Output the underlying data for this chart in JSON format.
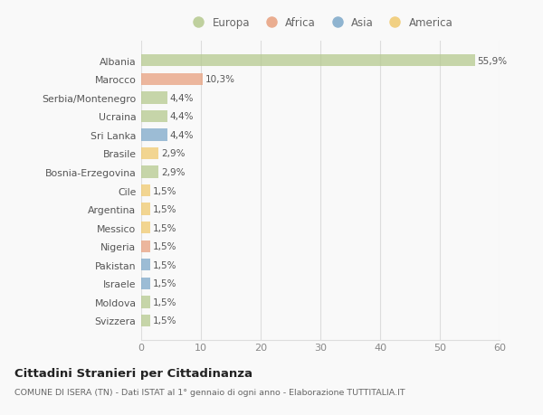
{
  "categories": [
    "Svizzera",
    "Moldova",
    "Israele",
    "Pakistan",
    "Nigeria",
    "Messico",
    "Argentina",
    "Cile",
    "Bosnia-Erzegovina",
    "Brasile",
    "Sri Lanka",
    "Ucraina",
    "Serbia/Montenegro",
    "Marocco",
    "Albania"
  ],
  "values": [
    1.5,
    1.5,
    1.5,
    1.5,
    1.5,
    1.5,
    1.5,
    1.5,
    2.9,
    2.9,
    4.4,
    4.4,
    4.4,
    10.3,
    55.9
  ],
  "labels": [
    "1,5%",
    "1,5%",
    "1,5%",
    "1,5%",
    "1,5%",
    "1,5%",
    "1,5%",
    "1,5%",
    "2,9%",
    "2,9%",
    "4,4%",
    "4,4%",
    "4,4%",
    "10,3%",
    "55,9%"
  ],
  "colors": [
    "#b5c98e",
    "#b5c98e",
    "#7da8c9",
    "#7da8c9",
    "#e8a07e",
    "#f0c96e",
    "#f0c96e",
    "#f0c96e",
    "#b5c98e",
    "#f0c96e",
    "#7da8c9",
    "#b5c98e",
    "#b5c98e",
    "#e8a07e",
    "#b5c98e"
  ],
  "legend_labels": [
    "Europa",
    "Africa",
    "Asia",
    "America"
  ],
  "legend_colors": [
    "#b5c98e",
    "#e8a07e",
    "#7da8c9",
    "#f0c96e"
  ],
  "title": "Cittadini Stranieri per Cittadinanza",
  "subtitle": "COMUNE DI ISERA (TN) - Dati ISTAT al 1° gennaio di ogni anno - Elaborazione TUTTITALIA.IT",
  "xlim": [
    0,
    60
  ],
  "xticks": [
    0,
    10,
    20,
    30,
    40,
    50,
    60
  ],
  "bg_color": "#f9f9f9",
  "grid_color": "#dddddd",
  "bar_alpha": 0.75,
  "bar_height": 0.65
}
